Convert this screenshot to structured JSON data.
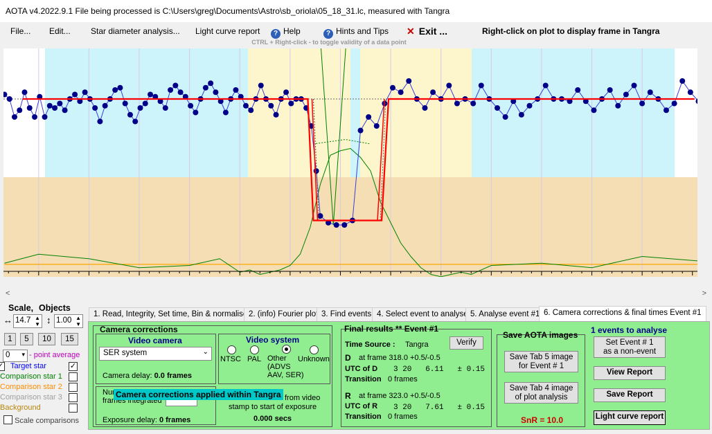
{
  "window": {
    "title": "AOTA v4.2022.9.1     File being processed is C:\\Users\\greg\\Documents\\Astro\\sb_oriola\\05_18_31.lc, measured with Tangra"
  },
  "menu": {
    "file": "File...",
    "edit": "Edit...",
    "star_diameter": "Star diameter analysis...",
    "light_curve_report": "Light curve report",
    "help": "Help",
    "hints": "Hints and Tips",
    "exit": "Exit ...",
    "right_click_note": "Right-click on plot to display frame in Tangra",
    "hint_line": "CTRL + Right-click  -  to toggle validity of a data point"
  },
  "colors": {
    "plot_bg_blue": "#cdf3fb",
    "plot_bg_yellow": "#fdf6cc",
    "plot_bg_tan": "#f5deb3",
    "panel_green": "#90ee90",
    "fit_red": "#ff0000",
    "data_blue": "#00008b",
    "comparison_green": "#008000",
    "background_orange": "#ffa500"
  },
  "chart_data": {
    "type": "line",
    "x_ticks": [
      "290",
      "295",
      "300",
      "305",
      "310",
      "315",
      "320",
      "325",
      "330",
      "335",
      "340",
      "345",
      "350"
    ],
    "xlim": [
      286.5,
      355.5
    ],
    "series": [
      {
        "name": "Target star",
        "x": [
          286.6,
          287.1,
          287.6,
          288.1,
          288.6,
          289.1,
          289.6,
          290.1,
          290.6,
          291.1,
          291.6,
          292.1,
          292.6,
          293.1,
          293.6,
          294.1,
          294.6,
          295.1,
          295.6,
          296.1,
          296.6,
          297.1,
          297.6,
          298.1,
          298.6,
          299.1,
          299.6,
          300.1,
          300.6,
          301.1,
          301.6,
          302.1,
          302.6,
          303.1,
          303.6,
          304.1,
          304.6,
          305.1,
          305.6,
          306.1,
          306.6,
          307.1,
          307.6,
          308.1,
          308.6,
          309.1,
          309.6,
          310.1,
          310.6,
          311.1,
          311.6,
          312.1,
          312.6,
          313.1,
          313.6,
          314.1,
          314.6,
          315.1,
          315.6,
          316.1,
          316.6,
          317.1,
          317.6,
          318.0,
          318.8,
          319.6,
          320.4,
          321.2,
          322.0,
          322.8,
          323.6,
          324.4,
          325.2,
          326.0,
          326.8,
          327.6,
          328.4,
          329.2,
          330.0,
          330.8,
          331.6,
          332.4,
          333.2,
          334.0,
          334.8,
          335.6,
          336.4,
          337.2,
          338.0,
          338.8,
          339.6,
          340.4,
          341.2,
          342.0,
          342.8,
          343.6,
          344.4,
          345.2,
          346.0,
          346.8,
          347.6,
          348.4,
          349.2,
          350.0,
          350.8,
          351.6,
          352.4,
          353.2,
          354.0,
          354.8,
          355.6
        ],
        "y": [
          0.82,
          0.8,
          0.72,
          0.75,
          0.83,
          0.76,
          0.72,
          0.81,
          0.72,
          0.77,
          0.76,
          0.78,
          0.75,
          0.8,
          0.82,
          0.79,
          0.83,
          0.8,
          0.76,
          0.7,
          0.77,
          0.8,
          0.84,
          0.85,
          0.78,
          0.73,
          0.7,
          0.76,
          0.78,
          0.82,
          0.81,
          0.79,
          0.76,
          0.84,
          0.86,
          0.83,
          0.81,
          0.77,
          0.74,
          0.8,
          0.85,
          0.87,
          0.83,
          0.79,
          0.74,
          0.8,
          0.84,
          0.81,
          0.77,
          0.75,
          0.8,
          0.86,
          0.8,
          0.77,
          0.73,
          0.8,
          0.83,
          0.78,
          0.8,
          0.8,
          0.76,
          0.68,
          0.48,
          0.28,
          0.25,
          0.24,
          0.24,
          0.26,
          0.66,
          0.72,
          0.68,
          0.78,
          0.85,
          0.83,
          0.88,
          0.8,
          0.76,
          0.83,
          0.8,
          0.86,
          0.78,
          0.8,
          0.78,
          0.86,
          0.8,
          0.76,
          0.72,
          0.79,
          0.73,
          0.77,
          0.8,
          0.86,
          0.8,
          0.8,
          0.79,
          0.84,
          0.79,
          0.75,
          0.8,
          0.84,
          0.77,
          0.82,
          0.86,
          0.78,
          0.83,
          0.8,
          0.75,
          0.78,
          0.88,
          0.83,
          0.79
        ]
      },
      {
        "name": "Comparison star 1",
        "x": [
          286.6,
          290,
          295,
          300,
          305,
          308,
          310,
          311,
          312,
          313,
          314,
          315,
          316,
          317,
          318,
          319,
          320,
          321,
          322,
          323,
          324,
          325,
          326,
          327,
          328,
          329,
          330,
          331,
          332,
          333,
          335,
          340,
          345,
          350,
          355.6
        ],
        "y": [
          0.07,
          0.11,
          0.09,
          0.05,
          0.06,
          0.09,
          0.03,
          0.04,
          0.02,
          0.03,
          0.04,
          0.06,
          0.11,
          0.23,
          0.42,
          0.55,
          0.57,
          0.58,
          0.54,
          0.48,
          0.34,
          0.25,
          0.16,
          0.1,
          0.05,
          0.02,
          0.01,
          0.02,
          0.03,
          0.02,
          0.06,
          0.07,
          0.05,
          0.1,
          0.08
        ]
      },
      {
        "name": "Background",
        "x": [
          286.6,
          355.6
        ],
        "y": [
          0.065,
          0.065
        ]
      }
    ],
    "fit": {
      "baseline": 0.8,
      "bottom": 0.26,
      "d_frame": 318.0,
      "r_frame": 323.0
    }
  },
  "objects_panel": {
    "scale_label": "Scale,",
    "objects_label": "Objects",
    "x_scale": "14.7",
    "y_scale": "1.00",
    "step_buttons": [
      "1",
      "5",
      "10",
      "15"
    ],
    "point_avg_value": "0",
    "point_avg_label": "- point average",
    "objects": [
      {
        "label": "Target star",
        "color": "#0000ff",
        "checked": true,
        "prefix": "ts"
      },
      {
        "label": "Comparison star 1",
        "color": "#008000",
        "checked": false
      },
      {
        "label": "Comparison star 2",
        "color": "#ff8c00",
        "checked": false
      },
      {
        "label": "Comparison star 3",
        "color": "#a0a0a0",
        "checked": false
      },
      {
        "label": "Background",
        "color": "#b8860b",
        "checked": false
      }
    ],
    "scale_comparisons": "Scale comparisons"
  },
  "tabs": [
    "1.  Read, Integrity, Set time, Bin & normalise",
    "2. (info)  Fourier plot",
    "3. Find events",
    "4. Select event to analyse",
    "5. Analyse event #1",
    "6. Camera corrections & final times Event #1"
  ],
  "camera": {
    "title": "Camera corrections",
    "video_camera_title": "Video camera",
    "camera_select": "SER system",
    "camera_delay_label": "Camera delay:",
    "camera_delay_value": "0.0 frames",
    "video_system_title": "Video system",
    "systems": [
      "NTSC",
      "PAL",
      "Other\n(ADVS\nAAV, SER)",
      "Unknown"
    ],
    "frames_integrated_label": "Num\nframes integrated",
    "exposure_delay_label": "Exposure delay:",
    "exposure_delay_value": "0 frames",
    "tooltip": "Camera corrections applied within Tangra",
    "from_video": "from video",
    "stamp_text": "stamp to start of exposure",
    "secs": "0.000 secs"
  },
  "final": {
    "title": "Final results  **  Event #1",
    "verify": "Verify",
    "time_source_label": "Time Source :",
    "time_source": "Tangra",
    "d_label": "D",
    "d_frame": "at frame 318.0  +0.5/-0.5",
    "utc_d_label": "UTC of D",
    "utc_d": "3 20   6.11   ± 0.15",
    "transition_label": "Transition",
    "transition_d": "0 frames",
    "r_label": "R",
    "r_frame": "at frame 323.0  +0.5/-0.5",
    "utc_r_label": "UTC of R",
    "utc_r": "3 20   7.61   ± 0.15",
    "transition_r": "0 frames"
  },
  "save": {
    "title": "Save AOTA images",
    "tab5": "Save Tab 5 image\nfor Event # 1",
    "tab4": "Save Tab 4 image\nof plot analysis",
    "snr": "SnR = 10.0"
  },
  "events": {
    "title": "1  events to analyse",
    "set_event": "Set Event # 1\nas a non-event",
    "view_report": "View Report",
    "save_report": "Save Report",
    "lc_report": "Light curve report"
  }
}
